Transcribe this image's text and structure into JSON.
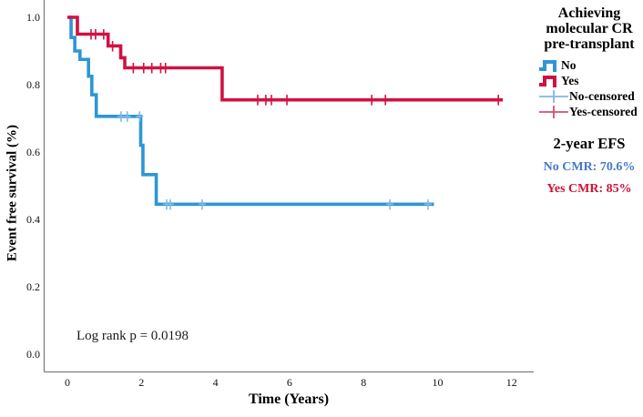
{
  "figure": {
    "y_axis_title": "Event free survival (%)",
    "x_axis_title": "Time (Years)",
    "annotation": "Log rank p = 0.0198"
  },
  "colors": {
    "no_line": "#2D96D5",
    "no_censor": "#7FB8E6",
    "yes_line": "#D01243",
    "yes_censor": "#D01243",
    "no_text": "#4678C8",
    "yes_text": "#CE1235",
    "axis": "#7d7d7d"
  },
  "legend": {
    "title": "Achieving\nmolecular CR\npre-transplant",
    "items": [
      {
        "label": "No",
        "glyph": "step",
        "color": "#2D96D5"
      },
      {
        "label": "Yes",
        "glyph": "step",
        "color": "#D01243"
      },
      {
        "label": "No-censored",
        "glyph": "plus",
        "color": "#7FB8E6"
      },
      {
        "label": "Yes-censored",
        "glyph": "plus",
        "color": "#D64E6F"
      }
    ]
  },
  "stats": {
    "heading": "2-year EFS",
    "lines": [
      {
        "text": "No CMR: 70.6%",
        "color": "#4678C8"
      },
      {
        "text": "Yes CMR: 85%",
        "color": "#CE1235"
      }
    ]
  },
  "chart_data": {
    "type": "line",
    "subtype": "kaplan-meier-step",
    "title": "",
    "xlabel": "Time (Years)",
    "ylabel": "Event free survival (%)",
    "xlim": [
      0,
      12.6
    ],
    "ylim": [
      0.0,
      1.05
    ],
    "grid": false,
    "legend_position": "right",
    "x_tick_values": [
      0,
      2,
      4,
      6,
      8,
      10,
      12
    ],
    "x_tick_labels": [
      "0",
      "2",
      "4",
      "6",
      "8",
      "10",
      "12"
    ],
    "y_tick_values": [
      1.0,
      0.8,
      0.6,
      0.4,
      0.2,
      0.0
    ],
    "y_tick_labels": [
      "1.0",
      "0.8",
      "0.6",
      "0.4",
      "0.2",
      "0.0"
    ],
    "annotations": [
      "Log rank p = 0.0198"
    ],
    "two_year_efs": {
      "No CMR": "70.6%",
      "Yes CMR": "85%"
    },
    "series": [
      {
        "name": "No",
        "color": "#2D96D5",
        "censor_color": "#7FB8E6",
        "steps": [
          [
            0.03,
            1.0
          ],
          [
            0.1,
            0.94
          ],
          [
            0.2,
            0.9
          ],
          [
            0.34,
            0.875
          ],
          [
            0.57,
            0.825
          ],
          [
            0.66,
            0.77
          ],
          [
            0.78,
            0.706
          ],
          [
            1.98,
            0.62
          ],
          [
            2.04,
            0.533
          ],
          [
            2.4,
            0.445
          ]
        ],
        "end_time": 9.9,
        "censors": [
          [
            1.45,
            0.706
          ],
          [
            1.62,
            0.706
          ],
          [
            1.95,
            0.706
          ],
          [
            2.68,
            0.445
          ],
          [
            2.78,
            0.445
          ],
          [
            3.64,
            0.445
          ],
          [
            8.71,
            0.445
          ],
          [
            9.74,
            0.445
          ]
        ]
      },
      {
        "name": "Yes",
        "color": "#D01243",
        "censor_color": "#D01243",
        "steps": [
          [
            0.0,
            1.0
          ],
          [
            0.27,
            0.95
          ],
          [
            1.1,
            0.915
          ],
          [
            1.44,
            0.88
          ],
          [
            1.55,
            0.85
          ],
          [
            4.18,
            0.755
          ]
        ],
        "end_time": 11.76,
        "censors": [
          [
            0.64,
            0.95
          ],
          [
            0.76,
            0.95
          ],
          [
            0.98,
            0.95
          ],
          [
            1.22,
            0.915
          ],
          [
            1.78,
            0.85
          ],
          [
            2.06,
            0.85
          ],
          [
            2.28,
            0.85
          ],
          [
            2.52,
            0.85
          ],
          [
            2.65,
            0.85
          ],
          [
            5.14,
            0.755
          ],
          [
            5.36,
            0.755
          ],
          [
            5.51,
            0.755
          ],
          [
            5.93,
            0.755
          ],
          [
            8.22,
            0.755
          ],
          [
            8.59,
            0.755
          ],
          [
            11.64,
            0.755
          ]
        ]
      }
    ]
  }
}
